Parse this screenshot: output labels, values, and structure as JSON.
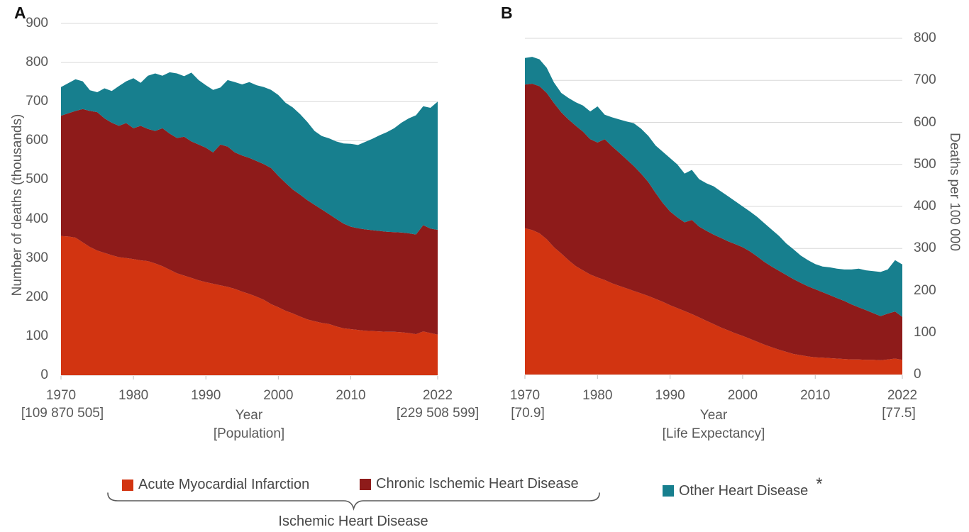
{
  "figure": {
    "panels": [
      {
        "label": "A",
        "y_axis_title": "Number of deaths (thousands)",
        "y_ticks": [
          "0",
          "100",
          "200",
          "300",
          "400",
          "500",
          "600",
          "700",
          "800",
          "900"
        ],
        "x_ticks": [
          "1970",
          "1980",
          "1990",
          "2000",
          "2010",
          "2022"
        ],
        "x_axis_title": "Year",
        "x_axis_subtitle": "[Population]",
        "first_year_note": "[109 870 505]",
        "last_year_note": "[229 508 599]"
      },
      {
        "label": "B",
        "y_axis_title": "Deaths per 100 000",
        "y_ticks": [
          "0",
          "100",
          "200",
          "300",
          "400",
          "500",
          "600",
          "700",
          "800"
        ],
        "x_ticks": [
          "1970",
          "1980",
          "1990",
          "2000",
          "2010",
          "2022"
        ],
        "x_axis_title": "Year",
        "x_axis_subtitle": "[Life Expectancy]",
        "first_year_note": "[70.9]",
        "last_year_note": "[77.5]"
      }
    ],
    "legend": {
      "items": [
        {
          "label": "Acute Myocardial Infarction",
          "color": "#d23411",
          "superscript": ""
        },
        {
          "label": "Chronic Ischemic Heart Disease",
          "color": "#8e1b1a",
          "superscript": ""
        },
        {
          "label": "Other Heart Disease",
          "color": "#177f8e",
          "superscript": "*"
        }
      ],
      "group_label": "Ischemic Heart Disease"
    },
    "colors": {
      "gridline": "#d9d9d9",
      "tick": "#bfbfbf",
      "axis_text": "#595959",
      "brace": "#595959"
    }
  },
  "chart_data": [
    {
      "type": "area",
      "stacked": true,
      "panel": "A",
      "title": "",
      "xlabel": "Year [Population]",
      "ylabel": "Number of deaths (thousands)",
      "x_start": 1970,
      "x_end": 2022,
      "x_tick_years": [
        1970,
        1980,
        1990,
        2000,
        2010,
        2022
      ],
      "ylim": [
        0,
        900
      ],
      "grid": true,
      "legend_position": "bottom",
      "series": [
        {
          "name": "Acute Myocardial Infarction",
          "color": "#d23411",
          "values": [
            356,
            355,
            352,
            340,
            328,
            319,
            313,
            307,
            302,
            300,
            297,
            294,
            292,
            286,
            279,
            270,
            261,
            255,
            249,
            243,
            238,
            234,
            230,
            226,
            221,
            214,
            208,
            201,
            193,
            182,
            174,
            165,
            158,
            150,
            143,
            138,
            134,
            131,
            125,
            120,
            118,
            116,
            114,
            113,
            112,
            111,
            111,
            110,
            108,
            105,
            112,
            108,
            104
          ]
        },
        {
          "name": "Chronic Ischemic Heart Disease",
          "color": "#8e1b1a",
          "values": [
            308,
            315,
            324,
            341,
            348,
            354,
            344,
            339,
            336,
            345,
            335,
            344,
            338,
            339,
            353,
            348,
            346,
            355,
            349,
            347,
            344,
            336,
            360,
            359,
            349,
            348,
            348,
            347,
            347,
            348,
            336,
            327,
            317,
            312,
            305,
            298,
            290,
            281,
            275,
            268,
            262,
            260,
            259,
            258,
            257,
            256,
            255,
            255,
            255,
            255,
            272,
            267,
            268
          ]
        },
        {
          "name": "Other Heart Disease",
          "color": "#177f8e",
          "values": [
            73,
            77,
            81,
            71,
            53,
            51,
            77,
            81,
            102,
            107,
            128,
            110,
            136,
            147,
            134,
            157,
            165,
            155,
            176,
            165,
            160,
            160,
            146,
            170,
            180,
            182,
            194,
            194,
            197,
            200,
            207,
            205,
            210,
            206,
            200,
            189,
            188,
            194,
            198,
            205,
            212,
            213,
            224,
            234,
            245,
            255,
            266,
            281,
            294,
            305,
            304,
            309,
            328
          ]
        }
      ]
    },
    {
      "type": "area",
      "stacked": true,
      "panel": "B",
      "title": "",
      "xlabel": "Year [Life Expectancy]",
      "ylabel": "Deaths per 100 000",
      "x_start": 1970,
      "x_end": 2022,
      "x_tick_years": [
        1970,
        1980,
        1990,
        2000,
        2010,
        2022
      ],
      "ylim": [
        0,
        800
      ],
      "grid": true,
      "legend_position": "bottom",
      "series": [
        {
          "name": "Acute Myocardial Infarction",
          "color": "#d23411",
          "values": [
            348,
            344,
            336,
            322,
            303,
            288,
            272,
            258,
            248,
            238,
            231,
            225,
            217,
            211,
            205,
            199,
            193,
            187,
            180,
            173,
            165,
            158,
            151,
            144,
            136,
            128,
            120,
            112,
            105,
            98,
            92,
            85,
            78,
            71,
            65,
            59,
            54,
            49,
            46,
            43,
            41,
            40,
            39,
            38,
            37,
            36,
            36,
            35,
            35,
            34,
            36,
            38,
            35
          ]
        },
        {
          "name": "Chronic Ischemic Heart Disease",
          "color": "#8e1b1a",
          "values": [
            342,
            348,
            350,
            348,
            343,
            336,
            335,
            334,
            330,
            322,
            321,
            335,
            326,
            317,
            307,
            297,
            285,
            271,
            252,
            235,
            223,
            216,
            211,
            224,
            216,
            214,
            213,
            213,
            212,
            212,
            211,
            208,
            203,
            197,
            192,
            188,
            183,
            178,
            172,
            167,
            162,
            156,
            150,
            144,
            138,
            131,
            124,
            118,
            111,
            105,
            109,
            112,
            102
          ]
        },
        {
          "name": "Other Heart Disease",
          "color": "#177f8e",
          "values": [
            63,
            64,
            64,
            60,
            49,
            46,
            51,
            56,
            62,
            66,
            86,
            58,
            69,
            79,
            90,
            102,
            107,
            110,
            113,
            122,
            127,
            126,
            116,
            119,
            113,
            113,
            115,
            111,
            107,
            102,
            97,
            95,
            94,
            92,
            88,
            83,
            75,
            71,
            65,
            62,
            60,
            61,
            66,
            70,
            75,
            83,
            92,
            95,
            100,
            105,
            105,
            122,
            125
          ]
        }
      ]
    }
  ]
}
